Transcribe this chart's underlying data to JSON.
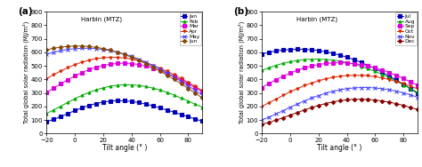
{
  "title_a": "(a)",
  "title_b": "(b)",
  "location": "Harbin (MTZ)",
  "xlabel": "Tilt angle (° )",
  "ylabel": "Total global solar radiation (MJ/m²)",
  "xlim": [
    -20,
    90
  ],
  "ylim": [
    0,
    900
  ],
  "yticks": [
    0,
    100,
    200,
    300,
    400,
    500,
    600,
    700,
    800,
    900
  ],
  "xticks": [
    -20,
    0,
    20,
    40,
    60,
    80
  ],
  "x_values": [
    -20,
    -15,
    -10,
    -5,
    0,
    5,
    10,
    15,
    20,
    25,
    30,
    35,
    40,
    45,
    50,
    55,
    60,
    65,
    70,
    75,
    80,
    85,
    90
  ],
  "panel_a": {
    "series": [
      {
        "label": "Jan",
        "color": "#0000bb",
        "marker": "s",
        "values": [
          88,
          105,
          125,
          148,
          170,
          190,
          208,
          222,
          233,
          240,
          243,
          242,
          237,
          229,
          218,
          205,
          190,
          174,
          158,
          141,
          124,
          107,
          92
        ]
      },
      {
        "label": "Feb",
        "color": "#00aa00",
        "marker": "^",
        "values": [
          148,
          175,
          202,
          230,
          257,
          282,
          304,
          323,
          338,
          350,
          357,
          361,
          360,
          356,
          348,
          336,
          322,
          304,
          284,
          262,
          240,
          217,
          195
        ]
      },
      {
        "label": "Mar",
        "color": "#dd00dd",
        "marker": "s",
        "values": [
          302,
          335,
          367,
          398,
          426,
          451,
          472,
          490,
          503,
          513,
          518,
          520,
          517,
          510,
          499,
          484,
          466,
          445,
          421,
          395,
          367,
          338,
          308
        ]
      },
      {
        "label": "Apr",
        "color": "#dd2200",
        "marker": "v",
        "values": [
          405,
          435,
          462,
          487,
          509,
          527,
          542,
          553,
          560,
          563,
          562,
          558,
          550,
          538,
          523,
          504,
          483,
          460,
          434,
          406,
          377,
          347,
          316
        ]
      },
      {
        "label": "May",
        "color": "#4444ff",
        "marker": "x",
        "values": [
          585,
          600,
          612,
          621,
          627,
          630,
          630,
          627,
          621,
          612,
          601,
          587,
          570,
          550,
          528,
          504,
          477,
          448,
          417,
          385,
          352,
          318,
          284
        ]
      },
      {
        "label": "Jun",
        "color": "#884400",
        "marker": "D",
        "values": [
          618,
          630,
          638,
          644,
          647,
          647,
          643,
          637,
          628,
          616,
          601,
          584,
          564,
          542,
          517,
          491,
          462,
          432,
          400,
          367,
          333,
          298,
          263
        ]
      }
    ]
  },
  "panel_b": {
    "series": [
      {
        "label": "Jul",
        "color": "#0000bb",
        "marker": "s",
        "values": [
          588,
          600,
          610,
          617,
          621,
          623,
          622,
          619,
          613,
          604,
          593,
          580,
          564,
          546,
          526,
          503,
          479,
          452,
          424,
          394,
          363,
          330,
          297
        ]
      },
      {
        "label": "Aug",
        "color": "#00aa00",
        "marker": "^",
        "values": [
          466,
          486,
          504,
          519,
          531,
          540,
          547,
          550,
          550,
          548,
          543,
          536,
          525,
          512,
          497,
          479,
          459,
          437,
          413,
          387,
          360,
          332,
          303
        ]
      },
      {
        "label": "Sep",
        "color": "#dd00dd",
        "marker": "s",
        "values": [
          340,
          370,
          398,
          424,
          447,
          468,
          485,
          499,
          510,
          518,
          522,
          524,
          522,
          517,
          509,
          498,
          485,
          469,
          450,
          429,
          406,
          381,
          355
        ]
      },
      {
        "label": "Oct",
        "color": "#dd2200",
        "marker": "v",
        "values": [
          200,
          228,
          255,
          282,
          308,
          332,
          354,
          373,
          390,
          404,
          415,
          423,
          428,
          430,
          430,
          426,
          420,
          411,
          399,
          385,
          368,
          350,
          330
        ]
      },
      {
        "label": "Nov",
        "color": "#4444ff",
        "marker": "x",
        "values": [
          100,
          122,
          145,
          169,
          194,
          218,
          241,
          262,
          281,
          298,
          312,
          323,
          332,
          337,
          340,
          340,
          337,
          331,
          323,
          313,
          300,
          285,
          268
        ]
      },
      {
        "label": "Dec",
        "color": "#880000",
        "marker": "D",
        "values": [
          68,
          83,
          99,
          117,
          136,
          155,
          174,
          192,
          208,
          222,
          234,
          243,
          249,
          253,
          254,
          252,
          248,
          241,
          232,
          221,
          208,
          193,
          177
        ]
      }
    ]
  }
}
